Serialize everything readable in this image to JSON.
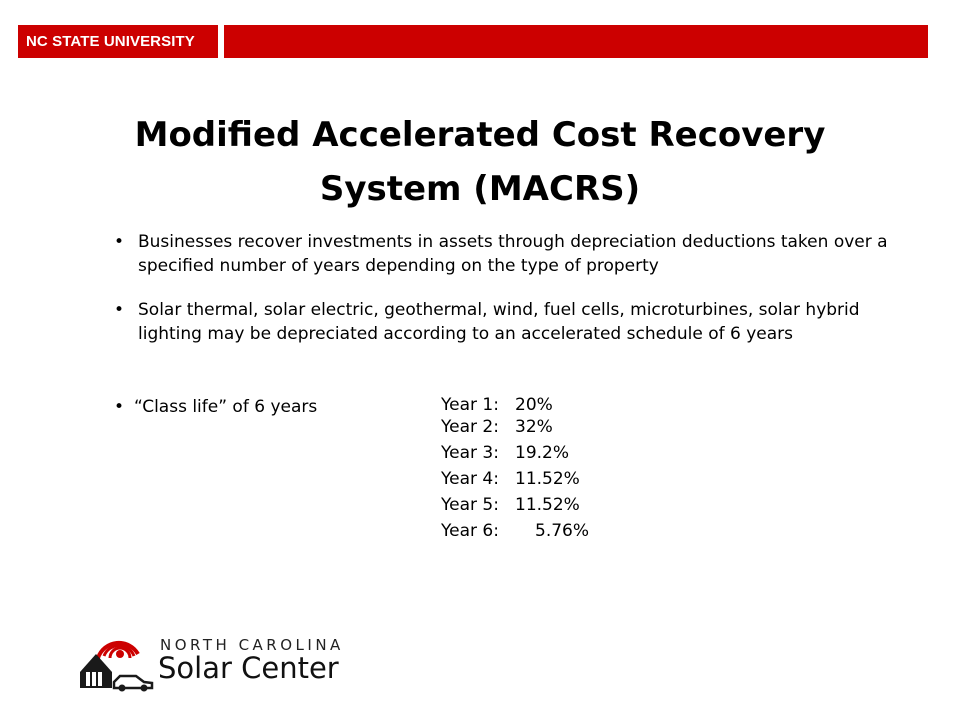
{
  "header": {
    "brand_text": "NC STATE UNIVERSITY",
    "brand_color": "#cc0000"
  },
  "slide": {
    "title_line1": "Modified Accelerated Cost Recovery",
    "title_line2": "System (MACRS)",
    "bullet_glyph": "•",
    "bullets": [
      {
        "text": "Businesses recover investments in assets through depreciation deductions taken over a specified number of years depending on the type of property"
      },
      {
        "text": "Solar thermal, solar electric, geothermal, wind, fuel cells, microturbines, solar hybrid lighting may be depreciated according to an accelerated schedule of 6 years"
      }
    ],
    "class_life_label": "“Class life” of 6 years",
    "schedule": [
      {
        "year": "Year 1:",
        "percent": "20%"
      },
      {
        "year": "Year 2:",
        "percent": "32%"
      },
      {
        "year": "Year 3:",
        "percent": "19.2%"
      },
      {
        "year": "Year 4:",
        "percent": "11.52%"
      },
      {
        "year": "Year 5:",
        "percent": "11.52%"
      },
      {
        "year": "Year 6:",
        "percent": "5.76%"
      }
    ]
  },
  "footer": {
    "logo_line1": "NORTH CAROLINA",
    "logo_line2": "Solar Center",
    "logo_accent_color": "#cc0000",
    "logo_icon": "sun-house-car-icon"
  }
}
